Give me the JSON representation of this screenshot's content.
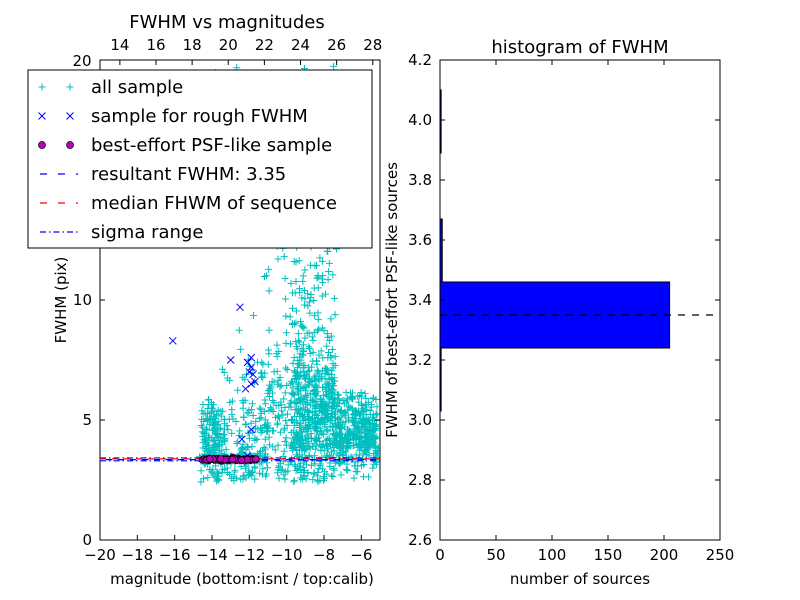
{
  "chart_data": [
    {
      "type": "scatter",
      "title": "FWHM vs magnitudes",
      "xlabel": "magnitude (bottom:isnt / top:calib)",
      "ylabel": "FWHM (pix)",
      "xlim": [
        -20,
        -5
      ],
      "ylim": [
        0,
        20
      ],
      "x_ticks": [
        -20,
        -18,
        -16,
        -14,
        -12,
        -10,
        -8,
        -6
      ],
      "x_tick_labels": [
        "−20",
        "−18",
        "−16",
        "−14",
        "−12",
        "−10",
        "−8",
        "−6"
      ],
      "y_ticks": [
        0,
        5,
        10
      ],
      "y_tick_labels": [
        "0",
        "5",
        "10"
      ],
      "top_axis": {
        "ticks": [
          14,
          16,
          18,
          20,
          22,
          24,
          26,
          28
        ],
        "tick_labels": [
          "14",
          "16",
          "18",
          "20",
          "22",
          "24",
          "26",
          "28"
        ],
        "extra_label": "20",
        "lim": [
          12.9,
          28.4
        ]
      },
      "series": [
        {
          "name": "all sample",
          "marker": "plus",
          "color": "#00bfbf",
          "clusters": [
            {
              "x_range": [
                -14.6,
                -13.6
              ],
              "y_mean": 3.9,
              "y_spread": 1.8,
              "y_tail": 5.5,
              "count": 140
            },
            {
              "x_range": [
                -13.6,
                -11.2
              ],
              "y_mean": 3.6,
              "y_spread": 2.2,
              "y_tail": 9.0,
              "count": 170
            },
            {
              "x_range": [
                -11.2,
                -9.6
              ],
              "y_mean": 4.8,
              "y_spread": 3.2,
              "y_tail": 14.0,
              "count": 170
            },
            {
              "x_range": [
                -9.6,
                -7.4
              ],
              "y_mean": 5.2,
              "y_spread": 3.0,
              "y_tail": 16.0,
              "count": 650
            },
            {
              "x_range": [
                -7.4,
                -5.1
              ],
              "y_mean": 4.2,
              "y_spread": 1.4,
              "y_tail": 6.0,
              "count": 380
            },
            {
              "x_range": [
                -14.7,
                -11.5
              ],
              "y_mean": 3.42,
              "y_spread": 0.07,
              "y_tail": 0,
              "count": 120
            }
          ]
        },
        {
          "name": "sample for rough FWHM",
          "marker": "x",
          "color": "#0000ff",
          "x": [
            -16.1,
            -13.0,
            -12.5,
            -12.1,
            -11.9,
            -11.8,
            -11.9,
            -12.2,
            -11.7,
            -11.9,
            -12.0,
            -11.9,
            -12.4,
            -12.1
          ],
          "y": [
            8.3,
            7.5,
            9.7,
            7.4,
            7.2,
            6.9,
            6.5,
            6.3,
            6.6,
            7.6,
            7.0,
            4.6,
            4.2,
            3.5
          ]
        },
        {
          "name": "best-effort PSF-like sample",
          "marker": "circle",
          "color": "#bf00bf",
          "x_range": [
            -14.6,
            -11.6
          ],
          "y_mean": 3.35,
          "y_spread": 0.06,
          "count": 90
        },
        {
          "name": "resultant FWHM: 3.35",
          "line": "dashed",
          "color": "#0000ff",
          "y": 3.35
        },
        {
          "name": "median FHWM of sequence",
          "line": "dashed",
          "color": "#ff0000",
          "y": 3.38
        },
        {
          "name": "sigma range",
          "line": "dashdot",
          "color": "#0000ff",
          "y": [
            3.3,
            3.42
          ]
        }
      ],
      "legend": "top-left"
    },
    {
      "type": "bar",
      "orientation": "horizontal",
      "title": "histogram of FWHM",
      "xlabel": "number of sources",
      "ylabel": "FWHM of best-effort PSF-like sources",
      "xlim": [
        0,
        250
      ],
      "ylim": [
        2.6,
        4.2
      ],
      "x_ticks": [
        0,
        50,
        100,
        150,
        200,
        250
      ],
      "y_ticks": [
        2.6,
        2.8,
        3.0,
        3.2,
        3.4,
        3.6,
        3.8,
        4.0,
        4.2
      ],
      "y_tick_labels": [
        "2.6",
        "2.8",
        "3.0",
        "3.2",
        "3.4",
        "3.6",
        "3.8",
        "4.0",
        "4.2"
      ],
      "bars": [
        {
          "bin": [
            3.03,
            3.24
          ],
          "count": 1
        },
        {
          "bin": [
            3.24,
            3.46
          ],
          "count": 205
        },
        {
          "bin": [
            3.46,
            3.67
          ],
          "count": 2
        },
        {
          "bin": [
            3.67,
            3.89
          ],
          "count": 0
        },
        {
          "bin": [
            3.89,
            4.1
          ],
          "count": 1
        }
      ],
      "bar_color": "#0000ff",
      "reference_line": {
        "y": 3.35,
        "style": "dashed",
        "color": "#000000"
      }
    }
  ]
}
